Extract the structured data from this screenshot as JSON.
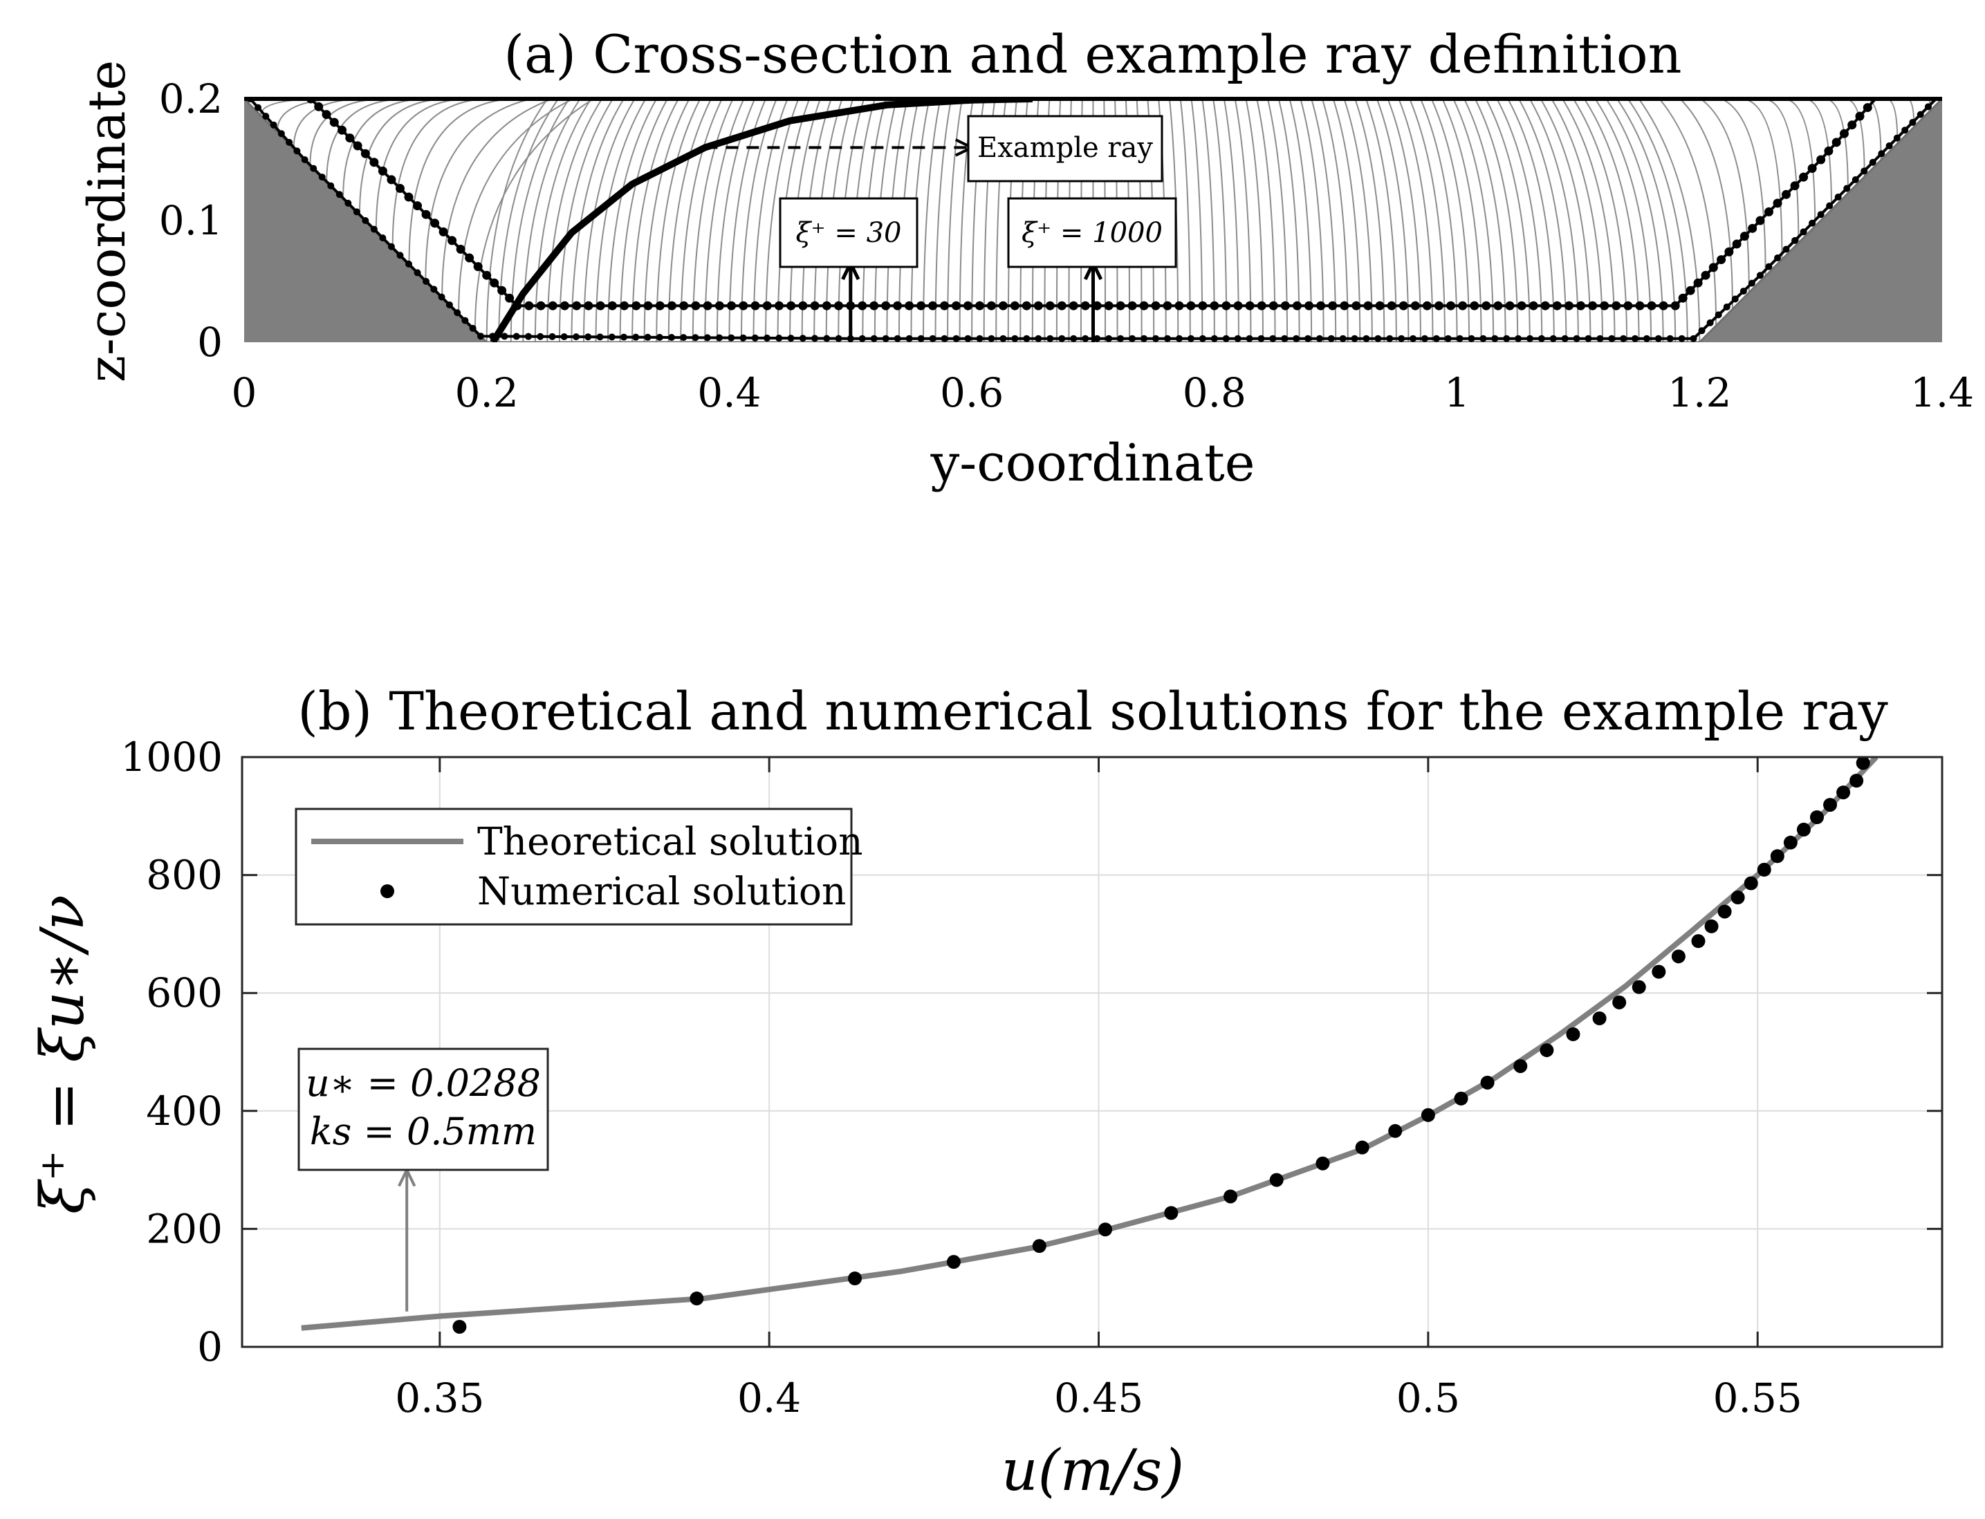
{
  "chart_data": [
    {
      "id": "a",
      "type": "line",
      "title": "(a) Cross-section and example ray definition",
      "xlabel": "y-coordinate",
      "ylabel": "z-coordinate",
      "xlim": [
        0,
        1.4
      ],
      "ylim": [
        0,
        0.2
      ],
      "xticks": [
        0,
        0.2,
        0.4,
        0.6,
        0.8,
        1,
        1.2,
        1.4
      ],
      "xtick_labels": [
        "0",
        "0.2",
        "0.4",
        "0.6",
        "0.8",
        "1",
        "1.2",
        "1.4"
      ],
      "yticks": [
        0,
        0.1,
        0.2
      ],
      "ytick_labels": [
        "0",
        "0.1",
        "0.2"
      ],
      "grid": false,
      "cross_section": [
        [
          0,
          0.2
        ],
        [
          0.2,
          0
        ],
        [
          1.2,
          0
        ],
        [
          1.4,
          0.2
        ]
      ],
      "series": [
        {
          "values": [
            [
              0.205,
              0.0
            ],
            [
              0.23,
              0.04
            ],
            [
              0.27,
              0.09
            ],
            [
              0.32,
              0.13
            ],
            [
              0.38,
              0.16
            ],
            [
              0.45,
              0.182
            ],
            [
              0.53,
              0.195
            ],
            [
              0.6,
              0.199
            ],
            [
              0.65,
              0.2
            ]
          ]
        },
        {
          "values": [
            [
              0.055,
              0.2
            ],
            [
              0.1,
              0.155
            ],
            [
              0.15,
              0.105
            ],
            [
              0.2,
              0.055
            ],
            [
              0.225,
              0.03
            ],
            [
              0.5,
              0.03
            ],
            [
              0.8,
              0.03
            ],
            [
              1.18,
              0.03
            ],
            [
              1.205,
              0.055
            ],
            [
              1.25,
              0.1
            ],
            [
              1.3,
              0.15
            ],
            [
              1.345,
              0.2
            ]
          ]
        },
        {
          "values": [
            [
              0.005,
              0.2
            ],
            [
              0.05,
              0.15
            ],
            [
              0.1,
              0.1
            ],
            [
              0.15,
              0.05
            ],
            [
              0.195,
              0.005
            ],
            [
              0.5,
              0.003
            ],
            [
              0.8,
              0.003
            ],
            [
              1.195,
              0.003
            ],
            [
              1.25,
              0.055
            ],
            [
              1.3,
              0.105
            ],
            [
              1.35,
              0.155
            ],
            [
              1.395,
              0.2
            ]
          ]
        }
      ],
      "annotations": [
        {
          "text": "Example ray",
          "arrow_from": [
            0.38,
            0.16
          ],
          "arrow_to": [
            0.6,
            0.16
          ]
        },
        {
          "text": "ξ⁺ = 30",
          "arrow_from": [
            0.5,
            0.0
          ],
          "arrow_to": [
            0.5,
            0.065
          ]
        },
        {
          "text": "ξ⁺ = 1000",
          "arrow_from": [
            0.7,
            0.0
          ],
          "arrow_to": [
            0.7,
            0.065
          ]
        }
      ]
    },
    {
      "id": "b",
      "type": "line",
      "title": "(b) Theoretical and numerical solutions for the example ray",
      "xlabel": "u(m/s)",
      "ylabel": "ξ⁺ = ξu∗/ν",
      "xlim": [
        0.32,
        0.578
      ],
      "ylim": [
        0,
        1000
      ],
      "xticks": [
        0.35,
        0.4,
        0.45,
        0.5,
        0.55
      ],
      "xtick_labels": [
        "0.35",
        "0.4",
        "0.45",
        "0.5",
        "0.55"
      ],
      "yticks": [
        0,
        200,
        400,
        600,
        800,
        1000
      ],
      "ytick_labels": [
        "0",
        "200",
        "400",
        "600",
        "800",
        "1000"
      ],
      "grid": true,
      "legend": {
        "position": "top-left",
        "entries": [
          "Theoretical solution",
          "Numerical solution"
        ]
      },
      "series": [
        {
          "name": "Theoretical solution",
          "x": [
            0.329,
            0.35,
            0.39,
            0.42,
            0.44,
            0.451,
            0.47,
            0.49,
            0.5,
            0.51,
            0.52,
            0.53,
            0.54,
            0.55,
            0.56,
            0.568
          ],
          "y": [
            32,
            52,
            82,
            128,
            168,
            198,
            255,
            335,
            392,
            455,
            530,
            612,
            705,
            800,
            905,
            1000
          ]
        },
        {
          "name": "Numerical solution",
          "x": [
            0.353,
            0.389,
            0.413,
            0.428,
            0.441,
            0.451,
            0.461,
            0.47,
            0.477,
            0.484,
            0.49,
            0.495,
            0.5,
            0.505,
            0.509,
            0.514,
            0.518,
            0.522,
            0.526,
            0.529,
            0.532,
            0.535,
            0.538,
            0.541,
            0.543,
            0.545,
            0.547,
            0.549,
            0.551,
            0.553,
            0.555,
            0.557,
            0.559,
            0.561,
            0.563,
            0.565,
            0.566
          ],
          "y": [
            34,
            82,
            116,
            144,
            171,
            199,
            227,
            255,
            283,
            311,
            338,
            366,
            393,
            421,
            448,
            476,
            503,
            530,
            557,
            584,
            610,
            636,
            662,
            688,
            713,
            738,
            762,
            786,
            809,
            832,
            855,
            877,
            898,
            919,
            940,
            960,
            990
          ]
        }
      ],
      "annotations": [
        {
          "lines": [
            "u∗ = 0.0288",
            "ks = 0.5mm"
          ],
          "arrow_from": [
            0.345,
            60
          ],
          "arrow_to": [
            0.345,
            300
          ]
        }
      ]
    }
  ]
}
